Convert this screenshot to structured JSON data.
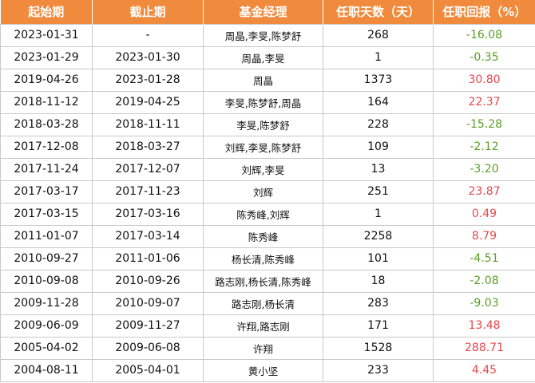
{
  "colors": {
    "header_bg": "#f08a3c",
    "positive": "#e8474c",
    "negative": "#5a9e26"
  },
  "headers": {
    "start": "起始期",
    "end": "截止期",
    "manager": "基金经理",
    "days": "任职天数（天）",
    "return": "任职回报（%）"
  },
  "rows": [
    {
      "start": "2023-01-31",
      "end": "-",
      "manager": "周晶,李旻,陈梦舒",
      "days": "268",
      "return": "-16.08",
      "sign": "neg"
    },
    {
      "start": "2023-01-29",
      "end": "2023-01-30",
      "manager": "周晶,李旻",
      "days": "1",
      "return": "-0.35",
      "sign": "neg"
    },
    {
      "start": "2019-04-26",
      "end": "2023-01-28",
      "manager": "周晶",
      "days": "1373",
      "return": "30.80",
      "sign": "pos"
    },
    {
      "start": "2018-11-12",
      "end": "2019-04-25",
      "manager": "李旻,陈梦舒,周晶",
      "days": "164",
      "return": "22.37",
      "sign": "pos"
    },
    {
      "start": "2018-03-28",
      "end": "2018-11-11",
      "manager": "李旻,陈梦舒",
      "days": "228",
      "return": "-15.28",
      "sign": "neg"
    },
    {
      "start": "2017-12-08",
      "end": "2018-03-27",
      "manager": "刘辉,李旻,陈梦舒",
      "days": "109",
      "return": "-2.12",
      "sign": "neg"
    },
    {
      "start": "2017-11-24",
      "end": "2017-12-07",
      "manager": "刘辉,李旻",
      "days": "13",
      "return": "-3.20",
      "sign": "neg"
    },
    {
      "start": "2017-03-17",
      "end": "2017-11-23",
      "manager": "刘辉",
      "days": "251",
      "return": "23.87",
      "sign": "pos"
    },
    {
      "start": "2017-03-15",
      "end": "2017-03-16",
      "manager": "陈秀峰,刘辉",
      "days": "1",
      "return": "0.49",
      "sign": "pos"
    },
    {
      "start": "2011-01-07",
      "end": "2017-03-14",
      "manager": "陈秀峰",
      "days": "2258",
      "return": "8.79",
      "sign": "pos"
    },
    {
      "start": "2010-09-27",
      "end": "2011-01-06",
      "manager": "杨长清,陈秀峰",
      "days": "101",
      "return": "-4.51",
      "sign": "neg"
    },
    {
      "start": "2010-09-08",
      "end": "2010-09-26",
      "manager": "路志刚,杨长清,陈秀峰",
      "days": "18",
      "return": "-2.08",
      "sign": "neg"
    },
    {
      "start": "2009-11-28",
      "end": "2010-09-07",
      "manager": "路志刚,杨长清",
      "days": "283",
      "return": "-9.03",
      "sign": "neg"
    },
    {
      "start": "2009-06-09",
      "end": "2009-11-27",
      "manager": "许翔,路志刚",
      "days": "171",
      "return": "13.48",
      "sign": "pos"
    },
    {
      "start": "2005-04-02",
      "end": "2009-06-08",
      "manager": "许翔",
      "days": "1528",
      "return": "288.71",
      "sign": "pos"
    },
    {
      "start": "2004-08-11",
      "end": "2005-04-01",
      "manager": "黄小坚",
      "days": "233",
      "return": "4.45",
      "sign": "pos"
    }
  ]
}
